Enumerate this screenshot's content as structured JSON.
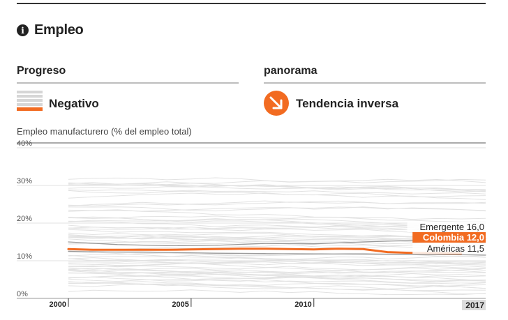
{
  "header": {
    "title": "Empleo",
    "icon": "info-icon"
  },
  "progress": {
    "label": "Progreso",
    "value": "Negativo"
  },
  "overview": {
    "label": "panorama",
    "value": "Tendencia inversa",
    "icon": "arrow-down-right-icon"
  },
  "colors": {
    "accent": "#f26b21",
    "grey_line": "#dcdcdc",
    "text": "#222222"
  },
  "chart_data": {
    "type": "line",
    "title": "",
    "subtitle": "Empleo manufacturero (% del empleo total)",
    "ylim": [
      0,
      40
    ],
    "xlim": [
      2000,
      2017
    ],
    "y_ticks": [
      "0%",
      "10%",
      "20%",
      "30%",
      "40%"
    ],
    "x_ticks": [
      "2000",
      "2005",
      "2010",
      "2017"
    ],
    "series": [
      {
        "name": "Emergente",
        "label": "Emergente 16,0",
        "x": [
          2000,
          2002,
          2004,
          2006,
          2008,
          2010,
          2012,
          2014,
          2016,
          2017
        ],
        "y": [
          15.0,
          14.3,
          14.0,
          14.1,
          14.6,
          14.5,
          15.0,
          15.4,
          15.8,
          16.0
        ]
      },
      {
        "name": "Colombia",
        "label": "Colombia 12,0",
        "x": [
          2000,
          2001,
          2002,
          2003,
          2004,
          2005,
          2006,
          2007,
          2008,
          2009,
          2010,
          2011,
          2012,
          2013,
          2014,
          2015,
          2016
        ],
        "y": [
          13.1,
          12.9,
          12.9,
          12.9,
          12.9,
          13.0,
          13.1,
          13.2,
          13.2,
          13.1,
          13.0,
          13.2,
          13.1,
          12.3,
          12.1,
          12.1,
          12.0
        ]
      },
      {
        "name": "Américas",
        "label": "Américas 11,5",
        "x": [
          2000,
          2002,
          2004,
          2006,
          2008,
          2010,
          2012,
          2014,
          2016,
          2017
        ],
        "y": [
          12.5,
          12.3,
          12.2,
          12.0,
          11.9,
          11.8,
          11.8,
          11.7,
          11.6,
          11.5
        ]
      }
    ],
    "highlight_series": "Colombia",
    "grid": true
  }
}
